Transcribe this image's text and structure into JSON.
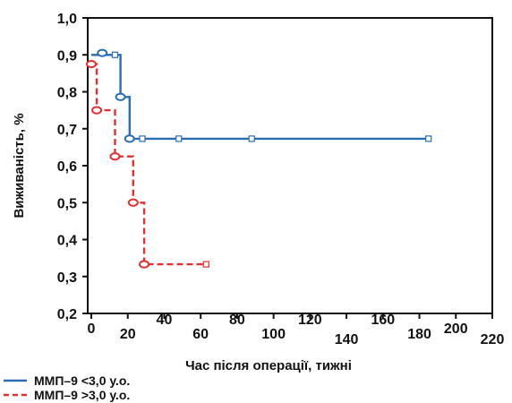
{
  "chart_data": {
    "type": "line",
    "subtype": "kaplan-meier step",
    "xlabel": "Час після операції, тижні",
    "ylabel": "Виживаність, %",
    "xlim": [
      0,
      220
    ],
    "ylim": [
      0.2,
      1.0
    ],
    "x_ticks": [
      "0",
      "20",
      "40",
      "60",
      "80",
      "100",
      "120",
      "140",
      "160",
      "180",
      "200",
      "220"
    ],
    "y_ticks": [
      "0,2",
      "0,3",
      "0,4",
      "0,5",
      "0,6",
      "0,7",
      "0,8",
      "0,9",
      "1,0"
    ],
    "grid": false,
    "legend_position": "bottom-left",
    "series": [
      {
        "name": "ММП–9 <3,0 у.о.",
        "color": "#2a6db5",
        "line_style": "solid",
        "steps": [
          [
            0,
            0.9
          ],
          [
            16,
            0.9
          ],
          [
            16,
            0.786
          ],
          [
            21,
            0.786
          ],
          [
            21,
            0.673
          ],
          [
            185,
            0.673
          ]
        ],
        "events": [
          [
            6,
            0.905
          ],
          [
            16,
            0.786
          ],
          [
            21,
            0.673
          ]
        ],
        "censored": [
          [
            13,
            0.9
          ],
          [
            28,
            0.673
          ],
          [
            48,
            0.673
          ],
          [
            88,
            0.673
          ],
          [
            185,
            0.673
          ]
        ]
      },
      {
        "name": "ММП–9 >3,0 у.о.",
        "color": "#e03030",
        "line_style": "dashed",
        "steps": [
          [
            0,
            0.875
          ],
          [
            3,
            0.875
          ],
          [
            3,
            0.75
          ],
          [
            13,
            0.75
          ],
          [
            13,
            0.625
          ],
          [
            23,
            0.625
          ],
          [
            23,
            0.5
          ],
          [
            29,
            0.5
          ],
          [
            29,
            0.333
          ],
          [
            63,
            0.333
          ]
        ],
        "events": [
          [
            0,
            0.875
          ],
          [
            3,
            0.75
          ],
          [
            13,
            0.625
          ],
          [
            23,
            0.5
          ],
          [
            29,
            0.333
          ]
        ],
        "censored": [
          [
            63,
            0.333
          ]
        ]
      }
    ]
  }
}
